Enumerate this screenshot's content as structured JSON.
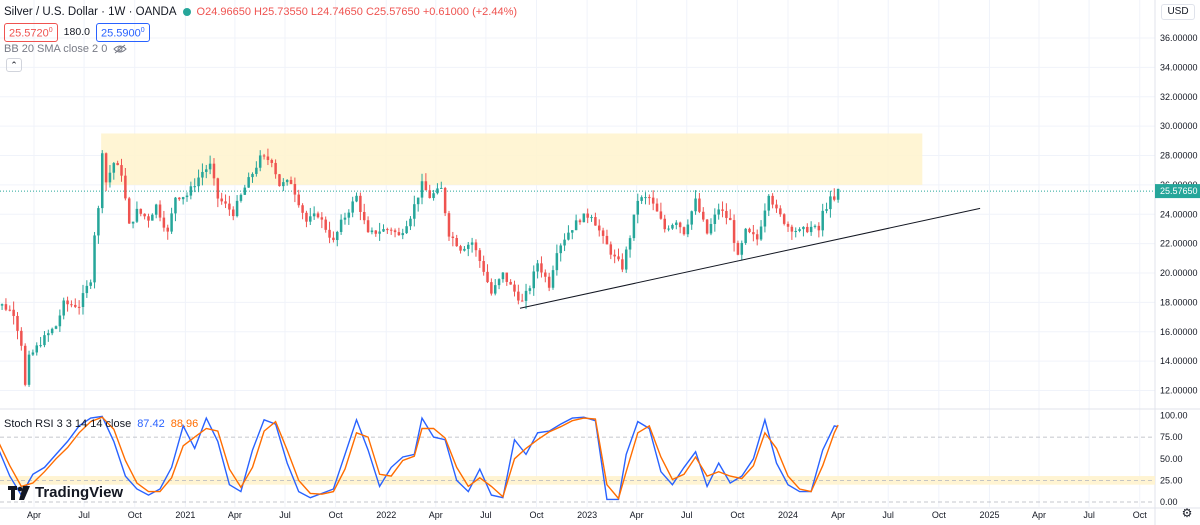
{
  "header": {
    "symbol_title": "Silver / U.S. Dollar · 1W · OANDA",
    "ohlc_text": "O24.96650 H25.73550 L24.74650 C25.57650 +0.61000 (+2.44%)",
    "sell_price": "25.5720",
    "sell_sup": "0",
    "spread": "180.0",
    "buy_price": "25.5900",
    "buy_sup": "0",
    "indicator_label": "BB 20 SMA close 2 0",
    "collapse_icon": "chevron-up-icon"
  },
  "currency_button": "USD",
  "rsi_header": {
    "label": "Stoch RSI 3 3 14 14 close",
    "k_value": "87.42",
    "d_value": "88.96"
  },
  "logo_text": "TradingView",
  "colors": {
    "up": "#26a69a",
    "down": "#ef5350",
    "k_line": "#2962ff",
    "d_line": "#ff6d00",
    "zone": "#fff3cd",
    "grid": "#f0f3fa"
  },
  "chart_data": [
    {
      "type": "candlestick",
      "title": "Silver / U.S. Dollar · 1W · OANDA",
      "ylim": [
        11,
        38
      ],
      "y_ticks": [
        "12.00000",
        "14.00000",
        "16.00000",
        "18.00000",
        "20.00000",
        "22.00000",
        "24.00000",
        "26.00000",
        "28.00000",
        "30.00000",
        "32.00000",
        "34.00000",
        "36.00000"
      ],
      "y_tick_values": [
        12,
        14,
        16,
        18,
        20,
        22,
        24,
        26,
        28,
        30,
        32,
        34,
        36
      ],
      "x_ticks": [
        "Apr",
        "Jul",
        "Oct",
        "2021",
        "Apr",
        "Jul",
        "Oct",
        "2022",
        "Apr",
        "Jul",
        "Oct",
        "2023",
        "Apr",
        "Jul",
        "Oct",
        "2024",
        "Apr",
        "Jul",
        "Oct",
        "2025",
        "Apr",
        "Jul",
        "Oct"
      ],
      "x_tick_dates": [
        "2020-04-01",
        "2020-07-01",
        "2020-10-01",
        "2021-01-01",
        "2021-04-01",
        "2021-07-01",
        "2021-10-01",
        "2022-01-01",
        "2022-04-01",
        "2022-07-01",
        "2022-10-01",
        "2023-01-01",
        "2023-04-01",
        "2023-07-01",
        "2023-10-01",
        "2024-01-01",
        "2024-04-01",
        "2024-07-01",
        "2024-10-01",
        "2025-01-01",
        "2025-04-01",
        "2025-07-01",
        "2025-10-01"
      ],
      "close_path": [
        [
          "2020-01-06",
          17.9
        ],
        [
          "2020-02-03",
          17.8
        ],
        [
          "2020-02-24",
          17.3
        ],
        [
          "2020-03-09",
          15.2
        ],
        [
          "2020-03-16",
          12.3
        ],
        [
          "2020-03-23",
          14.2
        ],
        [
          "2020-04-13",
          15.3
        ],
        [
          "2020-05-11",
          16.4
        ],
        [
          "2020-05-25",
          17.9
        ],
        [
          "2020-06-22",
          17.8
        ],
        [
          "2020-07-06",
          19.0
        ],
        [
          "2020-07-13",
          19.6
        ],
        [
          "2020-07-20",
          22.7
        ],
        [
          "2020-07-27",
          24.3
        ],
        [
          "2020-08-03",
          28.4
        ],
        [
          "2020-08-10",
          26.2
        ],
        [
          "2020-08-24",
          27.5
        ],
        [
          "2020-09-07",
          26.8
        ],
        [
          "2020-09-21",
          23.2
        ],
        [
          "2020-10-05",
          24.2
        ],
        [
          "2020-10-26",
          23.7
        ],
        [
          "2020-11-09",
          24.6
        ],
        [
          "2020-11-30",
          22.7
        ],
        [
          "2020-12-14",
          25.2
        ],
        [
          "2021-01-04",
          25.3
        ],
        [
          "2021-02-01",
          26.9
        ],
        [
          "2021-02-15",
          27.3
        ],
        [
          "2021-03-01",
          25.1
        ],
        [
          "2021-03-29",
          24.1
        ],
        [
          "2021-04-19",
          25.8
        ],
        [
          "2021-05-17",
          27.8
        ],
        [
          "2021-06-07",
          27.7
        ],
        [
          "2021-06-21",
          26.0
        ],
        [
          "2021-07-12",
          26.2
        ],
        [
          "2021-08-09",
          23.5
        ],
        [
          "2021-08-30",
          24.0
        ],
        [
          "2021-09-27",
          22.1
        ],
        [
          "2021-10-11",
          23.4
        ],
        [
          "2021-11-08",
          25.2
        ],
        [
          "2021-11-29",
          22.6
        ],
        [
          "2021-12-20",
          22.9
        ],
        [
          "2022-01-10",
          23.0
        ],
        [
          "2022-01-24",
          22.5
        ],
        [
          "2022-02-14",
          23.9
        ],
        [
          "2022-03-07",
          26.0
        ],
        [
          "2022-03-21",
          25.2
        ],
        [
          "2022-04-11",
          25.7
        ],
        [
          "2022-04-25",
          22.7
        ],
        [
          "2022-05-16",
          21.7
        ],
        [
          "2022-06-06",
          22.1
        ],
        [
          "2022-06-27",
          20.2
        ],
        [
          "2022-07-11",
          18.6
        ],
        [
          "2022-08-01",
          19.9
        ],
        [
          "2022-08-15",
          19.1
        ],
        [
          "2022-09-05",
          18.0
        ],
        [
          "2022-09-19",
          19.1
        ],
        [
          "2022-10-03",
          20.7
        ],
        [
          "2022-10-24",
          19.2
        ],
        [
          "2022-11-07",
          21.6
        ],
        [
          "2022-11-28",
          22.8
        ],
        [
          "2022-12-19",
          23.7
        ],
        [
          "2023-01-09",
          24.0
        ],
        [
          "2023-01-30",
          22.3
        ],
        [
          "2023-02-20",
          21.0
        ],
        [
          "2023-03-06",
          20.4
        ],
        [
          "2023-03-20",
          22.5
        ],
        [
          "2023-04-03",
          25.0
        ],
        [
          "2023-04-24",
          25.1
        ],
        [
          "2023-05-08",
          24.1
        ],
        [
          "2023-05-22",
          23.0
        ],
        [
          "2023-06-12",
          23.6
        ],
        [
          "2023-06-26",
          22.8
        ],
        [
          "2023-07-17",
          24.9
        ],
        [
          "2023-08-07",
          22.7
        ],
        [
          "2023-08-28",
          24.4
        ],
        [
          "2023-09-18",
          23.5
        ],
        [
          "2023-10-02",
          21.0
        ],
        [
          "2023-10-16",
          22.8
        ],
        [
          "2023-11-06",
          22.3
        ],
        [
          "2023-11-27",
          25.5
        ],
        [
          "2023-12-11",
          24.2
        ],
        [
          "2024-01-01",
          23.2
        ],
        [
          "2024-01-22",
          22.8
        ],
        [
          "2024-02-12",
          23.1
        ],
        [
          "2024-02-26",
          22.9
        ],
        [
          "2024-03-04",
          24.1
        ],
        [
          "2024-03-18",
          25.0
        ],
        [
          "2024-03-25",
          24.9
        ],
        [
          "2024-04-01",
          25.6
        ]
      ],
      "last_close": 25.5765,
      "resistance_zone": {
        "date_start": "2020-08-01",
        "date_end": "2024-09-01",
        "y_low": 26.0,
        "y_high": 29.5
      },
      "trendline": {
        "start": [
          "2022-09-01",
          17.6
        ],
        "end": [
          "2024-12-15",
          24.4
        ]
      },
      "grid": true
    },
    {
      "type": "line",
      "title": "Stoch RSI 3 3 14 14 close",
      "ylim": [
        0,
        100
      ],
      "y_ticks": [
        "100.00",
        "75.00",
        "50.00",
        "25.00",
        "0.00"
      ],
      "y_tick_values": [
        100,
        75,
        50,
        25,
        0
      ],
      "band": [
        20,
        30
      ],
      "series": [
        {
          "name": "K",
          "color": "#2962ff",
          "points": [
            [
              "2020-01-06",
              75
            ],
            [
              "2020-01-27",
              62
            ],
            [
              "2020-02-17",
              30
            ],
            [
              "2020-03-09",
              8
            ],
            [
              "2020-03-30",
              32
            ],
            [
              "2020-04-20",
              40
            ],
            [
              "2020-05-11",
              55
            ],
            [
              "2020-06-01",
              70
            ],
            [
              "2020-06-22",
              88
            ],
            [
              "2020-07-13",
              97
            ],
            [
              "2020-08-03",
              99
            ],
            [
              "2020-08-24",
              70
            ],
            [
              "2020-09-14",
              30
            ],
            [
              "2020-10-05",
              15
            ],
            [
              "2020-10-26",
              8
            ],
            [
              "2020-11-16",
              15
            ],
            [
              "2020-12-07",
              40
            ],
            [
              "2020-12-28",
              88
            ],
            [
              "2021-01-18",
              62
            ],
            [
              "2021-02-08",
              97
            ],
            [
              "2021-03-01",
              70
            ],
            [
              "2021-03-22",
              20
            ],
            [
              "2021-04-12",
              12
            ],
            [
              "2021-05-03",
              60
            ],
            [
              "2021-05-24",
              95
            ],
            [
              "2021-06-14",
              90
            ],
            [
              "2021-07-05",
              45
            ],
            [
              "2021-07-26",
              12
            ],
            [
              "2021-08-16",
              5
            ],
            [
              "2021-09-06",
              10
            ],
            [
              "2021-09-27",
              15
            ],
            [
              "2021-10-18",
              55
            ],
            [
              "2021-11-08",
              95
            ],
            [
              "2021-11-29",
              60
            ],
            [
              "2021-12-20",
              18
            ],
            [
              "2022-01-10",
              40
            ],
            [
              "2022-01-31",
              52
            ],
            [
              "2022-02-21",
              55
            ],
            [
              "2022-03-07",
              97
            ],
            [
              "2022-03-28",
              75
            ],
            [
              "2022-04-18",
              72
            ],
            [
              "2022-05-09",
              25
            ],
            [
              "2022-05-30",
              12
            ],
            [
              "2022-06-20",
              38
            ],
            [
              "2022-07-11",
              8
            ],
            [
              "2022-08-01",
              5
            ],
            [
              "2022-08-22",
              72
            ],
            [
              "2022-09-12",
              55
            ],
            [
              "2022-10-03",
              80
            ],
            [
              "2022-10-24",
              82
            ],
            [
              "2022-11-14",
              90
            ],
            [
              "2022-12-05",
              97
            ],
            [
              "2022-12-26",
              98
            ],
            [
              "2023-01-16",
              94
            ],
            [
              "2023-02-06",
              3
            ],
            [
              "2023-02-27",
              3
            ],
            [
              "2023-03-13",
              55
            ],
            [
              "2023-04-03",
              93
            ],
            [
              "2023-04-24",
              85
            ],
            [
              "2023-05-15",
              35
            ],
            [
              "2023-06-05",
              20
            ],
            [
              "2023-06-26",
              40
            ],
            [
              "2023-07-17",
              58
            ],
            [
              "2023-08-07",
              18
            ],
            [
              "2023-08-28",
              45
            ],
            [
              "2023-09-18",
              22
            ],
            [
              "2023-10-09",
              30
            ],
            [
              "2023-10-30",
              50
            ],
            [
              "2023-11-20",
              95
            ],
            [
              "2023-12-11",
              45
            ],
            [
              "2024-01-01",
              20
            ],
            [
              "2024-01-22",
              12
            ],
            [
              "2024-02-12",
              12
            ],
            [
              "2024-03-04",
              60
            ],
            [
              "2024-03-25",
              88
            ],
            [
              "2024-04-01",
              87
            ]
          ]
        },
        {
          "name": "D",
          "color": "#ff6d00",
          "points": [
            [
              "2020-01-06",
              80
            ],
            [
              "2020-01-27",
              70
            ],
            [
              "2020-02-17",
              42
            ],
            [
              "2020-03-09",
              18
            ],
            [
              "2020-03-30",
              22
            ],
            [
              "2020-04-20",
              35
            ],
            [
              "2020-05-11",
              50
            ],
            [
              "2020-06-01",
              63
            ],
            [
              "2020-06-22",
              80
            ],
            [
              "2020-07-13",
              93
            ],
            [
              "2020-08-03",
              98
            ],
            [
              "2020-08-24",
              84
            ],
            [
              "2020-09-14",
              48
            ],
            [
              "2020-10-05",
              22
            ],
            [
              "2020-10-26",
              12
            ],
            [
              "2020-11-16",
              12
            ],
            [
              "2020-12-07",
              28
            ],
            [
              "2020-12-28",
              65
            ],
            [
              "2021-01-18",
              75
            ],
            [
              "2021-02-08",
              85
            ],
            [
              "2021-03-01",
              82
            ],
            [
              "2021-03-22",
              38
            ],
            [
              "2021-04-12",
              17
            ],
            [
              "2021-05-03",
              40
            ],
            [
              "2021-05-24",
              82
            ],
            [
              "2021-06-14",
              93
            ],
            [
              "2021-07-05",
              60
            ],
            [
              "2021-07-26",
              25
            ],
            [
              "2021-08-16",
              10
            ],
            [
              "2021-09-06",
              9
            ],
            [
              "2021-09-27",
              12
            ],
            [
              "2021-10-18",
              38
            ],
            [
              "2021-11-08",
              80
            ],
            [
              "2021-11-29",
              75
            ],
            [
              "2021-12-20",
              32
            ],
            [
              "2022-01-10",
              30
            ],
            [
              "2022-01-31",
              48
            ],
            [
              "2022-02-21",
              53
            ],
            [
              "2022-03-07",
              85
            ],
            [
              "2022-03-28",
              85
            ],
            [
              "2022-04-18",
              74
            ],
            [
              "2022-05-09",
              40
            ],
            [
              "2022-05-30",
              18
            ],
            [
              "2022-06-20",
              28
            ],
            [
              "2022-07-11",
              18
            ],
            [
              "2022-08-01",
              6
            ],
            [
              "2022-08-22",
              50
            ],
            [
              "2022-09-12",
              62
            ],
            [
              "2022-10-03",
              72
            ],
            [
              "2022-10-24",
              81
            ],
            [
              "2022-11-14",
              87
            ],
            [
              "2022-12-05",
              94
            ],
            [
              "2022-12-26",
              97
            ],
            [
              "2023-01-16",
              96
            ],
            [
              "2023-02-06",
              20
            ],
            [
              "2023-02-27",
              4
            ],
            [
              "2023-03-13",
              35
            ],
            [
              "2023-04-03",
              80
            ],
            [
              "2023-04-24",
              88
            ],
            [
              "2023-05-15",
              52
            ],
            [
              "2023-06-05",
              26
            ],
            [
              "2023-06-26",
              32
            ],
            [
              "2023-07-17",
              52
            ],
            [
              "2023-08-07",
              30
            ],
            [
              "2023-08-28",
              35
            ],
            [
              "2023-09-18",
              30
            ],
            [
              "2023-10-09",
              27
            ],
            [
              "2023-10-30",
              42
            ],
            [
              "2023-11-20",
              80
            ],
            [
              "2023-12-11",
              62
            ],
            [
              "2024-01-01",
              30
            ],
            [
              "2024-01-22",
              15
            ],
            [
              "2024-02-12",
              12
            ],
            [
              "2024-03-04",
              42
            ],
            [
              "2024-03-25",
              80
            ],
            [
              "2024-04-01",
              89
            ]
          ]
        }
      ],
      "grid": true
    }
  ]
}
